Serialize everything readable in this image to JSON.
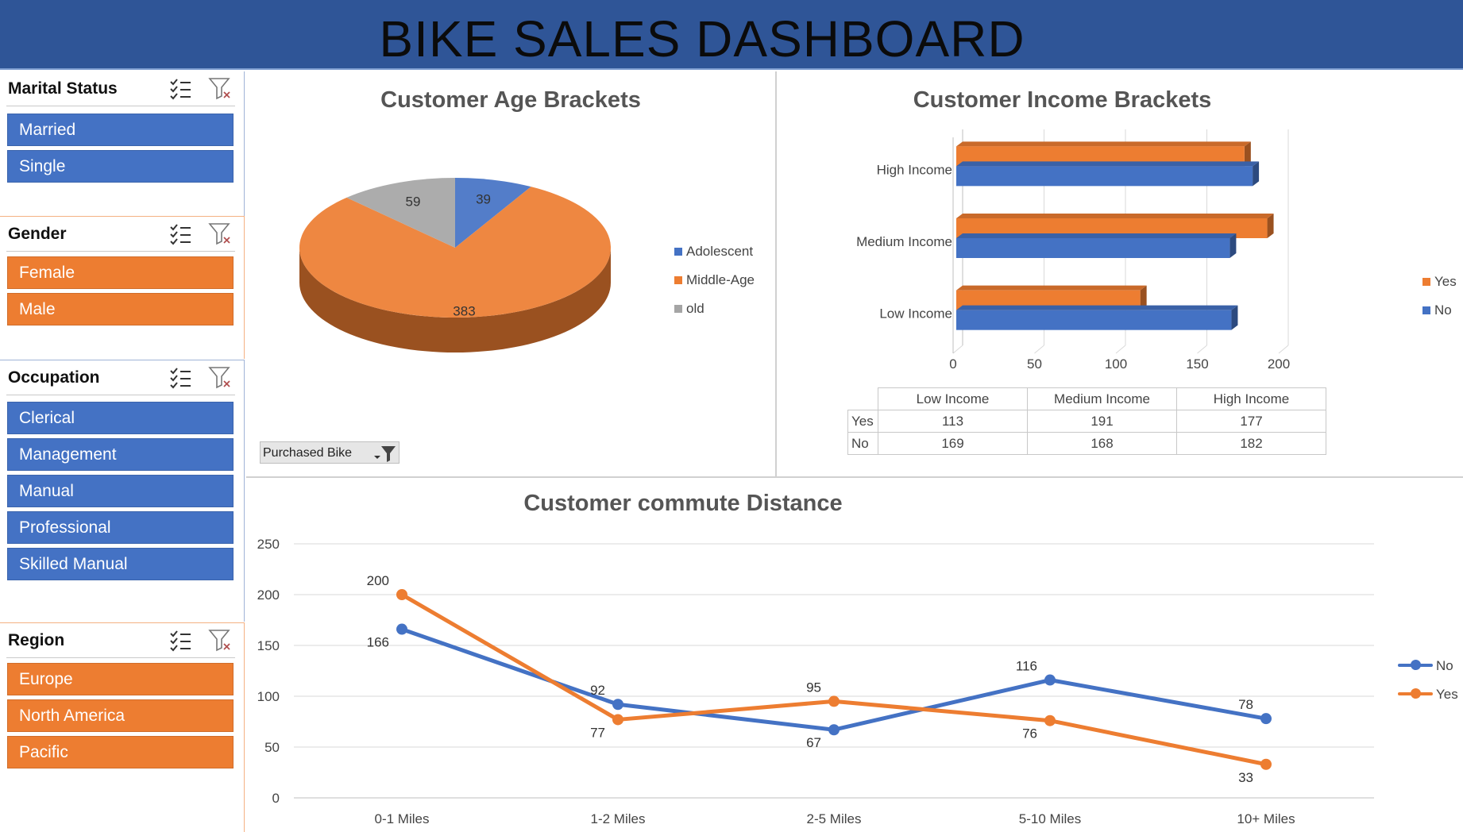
{
  "header": {
    "title": "BIKE SALES DASHBOARD"
  },
  "slicers": [
    {
      "title": "Marital Status",
      "items": [
        "Married",
        "Single"
      ]
    },
    {
      "title": "Gender",
      "items": [
        "Female",
        "Male"
      ]
    },
    {
      "title": "Occupation",
      "items": [
        "Clerical",
        "Management",
        "Manual",
        "Professional",
        "Skilled Manual"
      ]
    },
    {
      "title": "Region",
      "items": [
        "Europe",
        "North America",
        "Pacific"
      ]
    }
  ],
  "filter_button": {
    "label": "Purchased Bike"
  },
  "colors": {
    "blue": "#4472c4",
    "orange": "#ed7d31",
    "grey": "#a5a5a5",
    "banner": "#2f5597"
  },
  "icons": {
    "multi_select": "multi-select-icon",
    "clear_filter": "clear-filter-icon",
    "dropdown_filter": "dropdown-filter-icon"
  },
  "chart_data": [
    {
      "type": "pie",
      "title": "Customer Age Brackets",
      "categories": [
        "Adolescent",
        "Middle-Age",
        "old"
      ],
      "values": [
        39,
        383,
        59
      ],
      "colors": [
        "#4472c4",
        "#ed7d31",
        "#a5a5a5"
      ],
      "legend_position": "right"
    },
    {
      "type": "bar",
      "orientation": "horizontal",
      "title": "Customer Income Brackets",
      "categories": [
        "Low Income",
        "Medium Income",
        "High Income"
      ],
      "series": [
        {
          "name": "Yes",
          "values": [
            113,
            191,
            177
          ],
          "color": "#ed7d31"
        },
        {
          "name": "No",
          "values": [
            169,
            168,
            182
          ],
          "color": "#4472c4"
        }
      ],
      "xlim": [
        0,
        200
      ],
      "xticks": [
        0,
        50,
        100,
        150,
        200
      ],
      "grid": true,
      "legend_position": "right",
      "data_table": {
        "columns": [
          "Low Income",
          "Medium Income",
          "High Income"
        ],
        "rows": [
          {
            "label": "Yes",
            "values": [
              113,
              191,
              177
            ]
          },
          {
            "label": "No",
            "values": [
              169,
              168,
              182
            ]
          }
        ]
      }
    },
    {
      "type": "line",
      "title": "Customer commute Distance",
      "categories": [
        "0-1 Miles",
        "1-2 Miles",
        "2-5 Miles",
        "5-10 Miles",
        "10+ Miles"
      ],
      "series": [
        {
          "name": "No",
          "values": [
            166,
            92,
            67,
            116,
            78
          ],
          "color": "#4472c4"
        },
        {
          "name": "Yes",
          "values": [
            200,
            77,
            95,
            76,
            33
          ],
          "color": "#ed7d31"
        }
      ],
      "ylim": [
        0,
        250
      ],
      "yticks": [
        0,
        50,
        100,
        150,
        200,
        250
      ],
      "grid": true,
      "legend_position": "right"
    }
  ]
}
